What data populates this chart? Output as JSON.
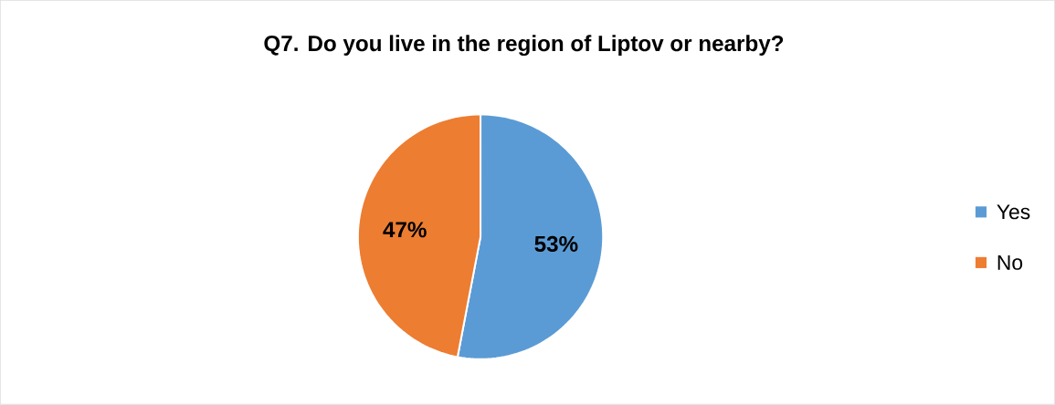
{
  "chart_data": {
    "type": "pie",
    "title": "Q7. Do you live in the region of Liptov or nearby?",
    "categories": [
      "Yes",
      "No"
    ],
    "values": [
      53,
      47
    ],
    "colors": [
      "#5b9bd5",
      "#ed7d31"
    ],
    "value_labels": [
      "53%",
      "47%"
    ],
    "legend": "right"
  }
}
